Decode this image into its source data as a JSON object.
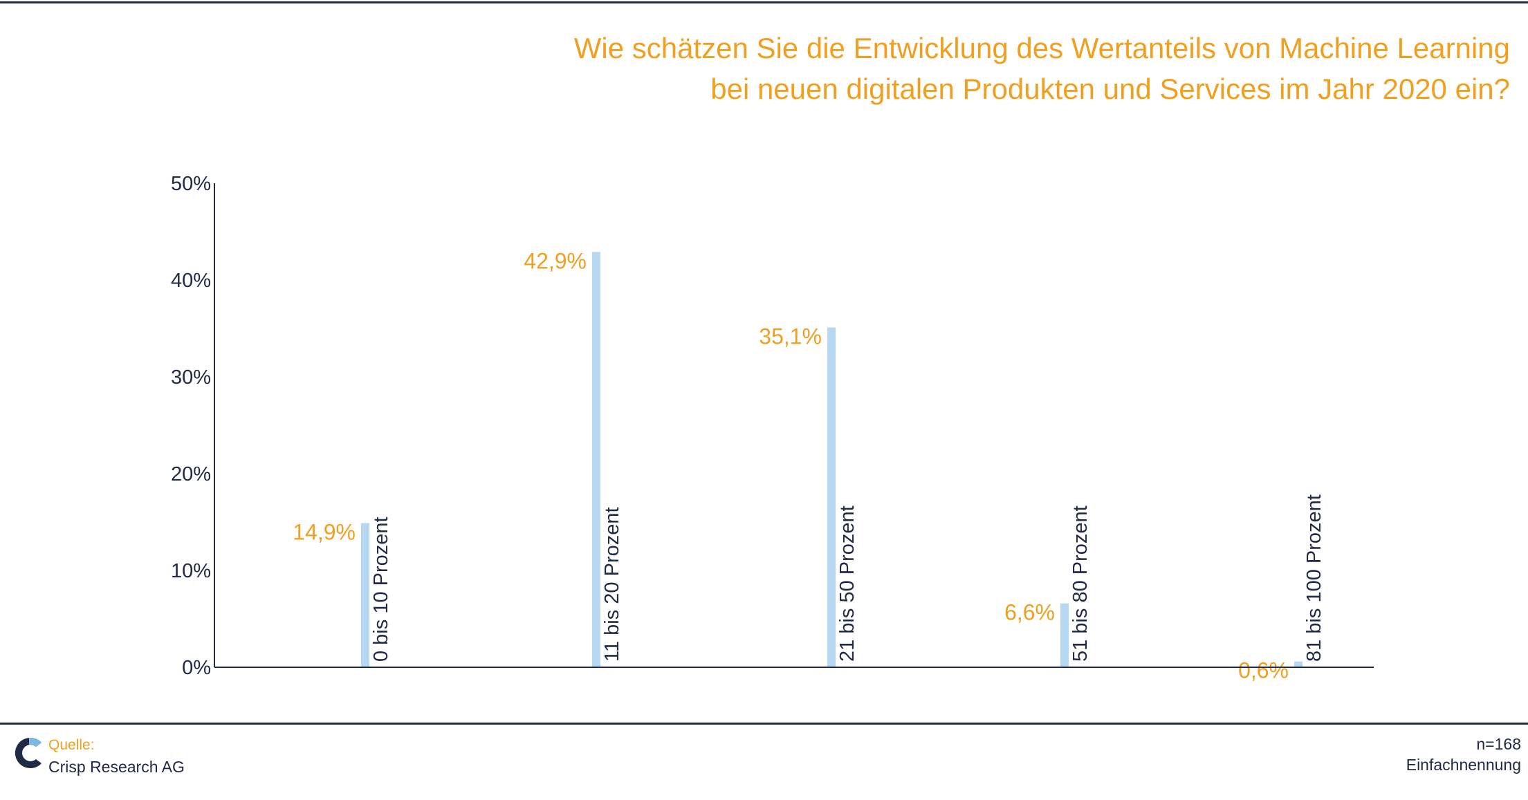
{
  "chart_data": {
    "type": "bar",
    "title": "Wie schätzen Sie die Entwicklung des Wertanteils von Machine Learning bei neuen digitalen Produkten und Services im Jahr 2020 ein?",
    "title_lines": [
      "Wie schätzen Sie die Entwicklung des Wertanteils von Machine Learning",
      "bei neuen digitalen Produkten und Services im Jahr 2020 ein?"
    ],
    "categories": [
      "0 bis 10 Prozent",
      "11 bis 20 Prozent",
      "21 bis 50 Prozent",
      "51 bis 80 Prozent",
      "81 bis 100 Prozent"
    ],
    "values": [
      14.9,
      42.9,
      35.1,
      6.6,
      0.6
    ],
    "value_labels": [
      "14,9%",
      "42,9%",
      "35,1%",
      "6,6%",
      "0,6%"
    ],
    "y_ticks": [
      0,
      10,
      20,
      30,
      40,
      50
    ],
    "y_tick_labels": [
      "0%",
      "10%",
      "20%",
      "30%",
      "40%",
      "50%"
    ],
    "ylim": [
      0,
      50
    ],
    "xlabel": "",
    "ylabel": "",
    "grid": false,
    "colors": {
      "bar": "#b8d8f2",
      "value_label": "#f0a020",
      "axis": "#1f2a44",
      "title": "#f0a020"
    }
  },
  "footer": {
    "source_label": "Quelle:",
    "source_name": "Crisp Research AG",
    "sample_size": "n=168",
    "answer_mode": "Einfachnennung",
    "logo_icon": "crisp-c-logo-icon"
  }
}
